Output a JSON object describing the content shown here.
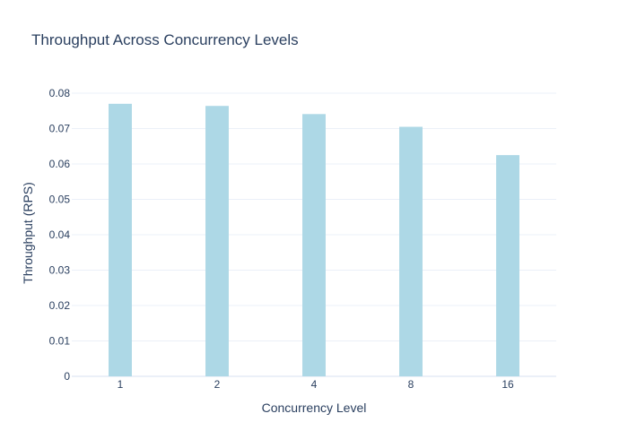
{
  "chart_data": {
    "type": "bar",
    "title": "Throughput Across Concurrency Levels",
    "xlabel": "Concurrency Level",
    "ylabel": "Throughput (RPS)",
    "categories": [
      "1",
      "2",
      "4",
      "8",
      "16"
    ],
    "values": [
      0.077,
      0.0764,
      0.0741,
      0.0705,
      0.0625
    ],
    "ylim": [
      0,
      0.08
    ],
    "yticks": [
      "0",
      "0.01",
      "0.02",
      "0.03",
      "0.04",
      "0.05",
      "0.06",
      "0.07",
      "0.08"
    ],
    "grid": true,
    "legend": "none",
    "bar_color": "#add8e6",
    "text_color": "#2a3f5f",
    "grid_color": "#ebf0f8"
  }
}
